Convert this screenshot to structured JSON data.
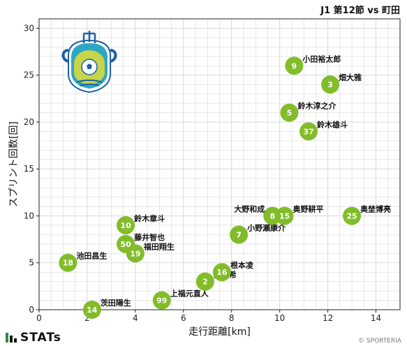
{
  "header": {
    "match_title": "J1 第12節 vs 町田"
  },
  "footer": {
    "brand": "STATs",
    "copyright": "© SPORTERIA"
  },
  "club_badge": {
    "icon": "shonan-bellmare-crest-icon",
    "colors": [
      "#2aa8c6",
      "#1c5fa8",
      "#c8d44a",
      "#ffffff"
    ]
  },
  "colors": {
    "marker": "#82bc2a",
    "marker_text": "#ffffff",
    "grid": "#d9d9d9",
    "axis": "#222222"
  },
  "chart_data": {
    "type": "scatter",
    "title": "",
    "xlabel": "走行距離[km]",
    "ylabel": "スプリント回数[回]",
    "xlim": [
      0,
      15
    ],
    "ylim": [
      0,
      31
    ],
    "xticks": [
      0,
      2,
      4,
      6,
      8,
      10,
      12,
      14
    ],
    "yticks": [
      0,
      5,
      10,
      15,
      20,
      25,
      30
    ],
    "grid": true,
    "points": [
      {
        "number": "9",
        "name": "小田裕太郎",
        "x": 10.6,
        "y": 26
      },
      {
        "number": "3",
        "name": "畑大雅",
        "x": 12.1,
        "y": 24
      },
      {
        "number": "5",
        "name": "鈴木淳之介",
        "x": 10.4,
        "y": 21
      },
      {
        "number": "37",
        "name": "鈴木雄斗",
        "x": 11.2,
        "y": 19
      },
      {
        "number": "8",
        "name": "大野和成",
        "x": 9.7,
        "y": 10
      },
      {
        "number": "15",
        "name": "奥野耕平",
        "x": 10.2,
        "y": 10
      },
      {
        "number": "25",
        "name": "奥埜博亮",
        "x": 13.0,
        "y": 10
      },
      {
        "number": "7",
        "name": "小野瀬康介",
        "x": 8.3,
        "y": 8
      },
      {
        "number": "10",
        "name": "鈴木章斗",
        "x": 3.6,
        "y": 9
      },
      {
        "number": "50",
        "name": "藤井智也",
        "x": 3.6,
        "y": 7
      },
      {
        "number": "19",
        "name": "福田翔生",
        "x": 4.0,
        "y": 6
      },
      {
        "number": "18",
        "name": "池田昌生",
        "x": 1.2,
        "y": 5
      },
      {
        "number": "16",
        "name": "根本凌",
        "x": 7.6,
        "y": 4
      },
      {
        "number": "2",
        "name": "舘幸希",
        "x": 6.9,
        "y": 3
      },
      {
        "number": "99",
        "name": "上福元直人",
        "x": 5.1,
        "y": 1
      },
      {
        "number": "14",
        "name": "茨田陽生",
        "x": 2.2,
        "y": 0
      }
    ]
  }
}
